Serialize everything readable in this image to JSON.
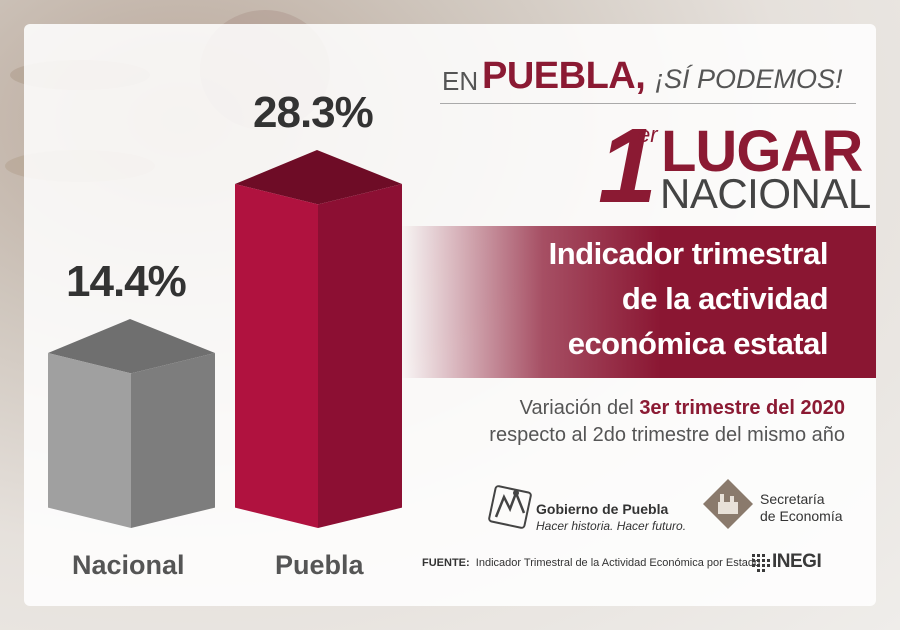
{
  "headline": {
    "prefix": "EN",
    "state": "PUEBLA,",
    "slogan": "¡SÍ PODEMOS!"
  },
  "rank": {
    "number": "1",
    "superscript": "er",
    "line1": "LUGAR",
    "line2": "NACIONAL"
  },
  "indicator": {
    "line1": "Indicador trimestral",
    "line2": "de la actividad",
    "line3": "económica estatal"
  },
  "variation": {
    "prefix": "Variación del ",
    "highlight": "3er trimestre del 2020",
    "line2": "respecto al 2do trimestre del mismo año"
  },
  "logos": {
    "gobierno_name": "Gobierno de Puebla",
    "gobierno_slogan": "Hacer historia. Hacer futuro.",
    "secretaria_line1": "Secretaría",
    "secretaria_line2": "de Economía",
    "inegi": "INEGI"
  },
  "source": {
    "label": "FUENTE:",
    "text": "Indicador Trimestral de la Actividad Económica por Estado"
  },
  "colors": {
    "accent": "#8b1a33",
    "bar_nacional": "#9a9a9a",
    "bar_puebla": "#a8123e"
  },
  "chart_data": {
    "type": "bar",
    "categories": [
      "Nacional",
      "Puebla"
    ],
    "values": [
      14.4,
      28.3
    ],
    "value_labels": [
      "14.4%",
      "28.3%"
    ],
    "ylim": [
      0,
      30
    ],
    "grid": false,
    "legend": "none",
    "style": "3d-box"
  }
}
